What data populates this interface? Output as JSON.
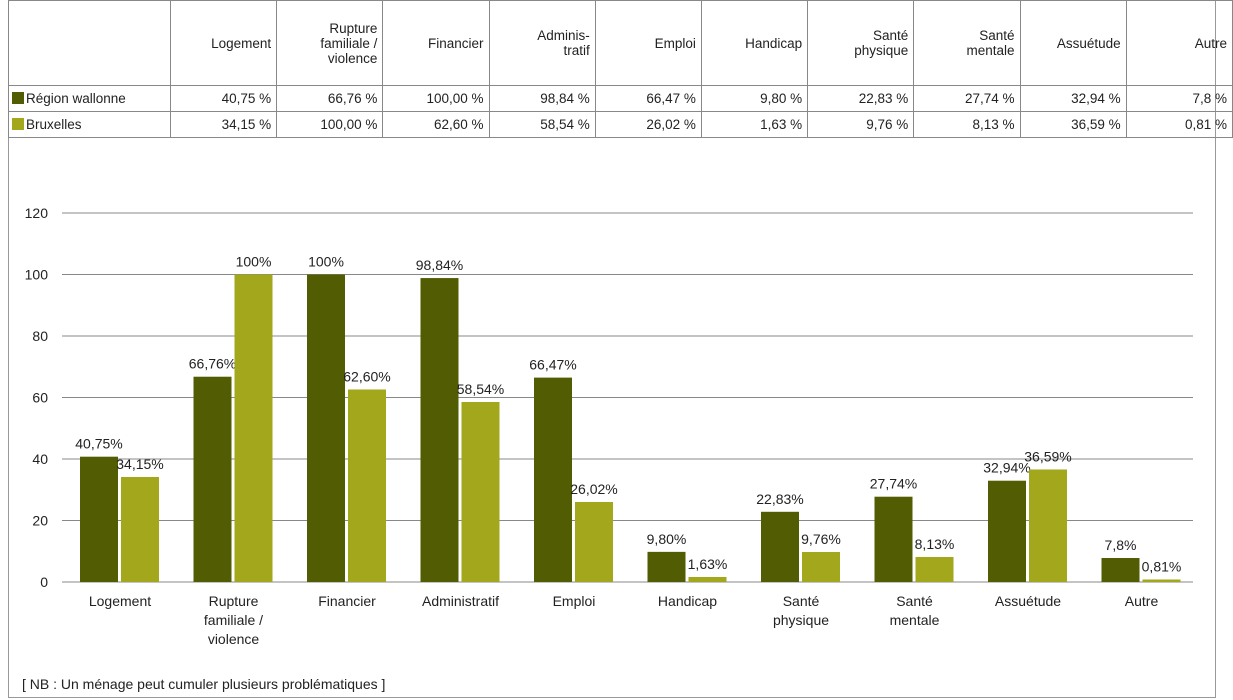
{
  "table": {
    "header": [
      [
        "Logement"
      ],
      [
        "Rupture",
        "familiale /",
        "violence"
      ],
      [
        "Financier"
      ],
      [
        "Adminis-",
        "tratif"
      ],
      [
        "Emploi"
      ],
      [
        "Handicap"
      ],
      [
        "Santé",
        "physique"
      ],
      [
        "Santé",
        "mentale"
      ],
      [
        "Assuétude"
      ],
      [
        "Autre"
      ]
    ],
    "rows": [
      [
        "40,75 %",
        "66,76 %",
        "100,00 %",
        "98,84 %",
        "66,47 %",
        "9,80 %",
        "22,83 %",
        "27,74 %",
        "32,94 %",
        "7,8 %"
      ],
      [
        "34,15 %",
        "100,00 %",
        "62,60 %",
        "58,54 %",
        "26,02 %",
        "1,63 %",
        "9,76 %",
        "8,13 %",
        "36,59 %",
        "0,81 %"
      ]
    ]
  },
  "chart_data": {
    "type": "bar",
    "categories": [
      "Logement",
      "Rupture familiale / violence",
      "Financier",
      "Administratif",
      "Emploi",
      "Handicap",
      "Santé physique",
      "Santé mentale",
      "Assuétude",
      "Autre"
    ],
    "series": [
      {
        "name": "Région wallonne",
        "color": "#525c02",
        "values": [
          40.75,
          66.76,
          100,
          98.84,
          66.47,
          9.8,
          22.83,
          27.74,
          32.94,
          7.8
        ],
        "value_labels": [
          "40,75%",
          "66,76%",
          "100%",
          "98,84%",
          "66,47%",
          "9,80%",
          "22,83%",
          "27,74%",
          "32,94%",
          "7,8%"
        ]
      },
      {
        "name": "Bruxelles",
        "color": "#a3a71b",
        "values": [
          34.15,
          100,
          62.6,
          58.54,
          26.02,
          1.63,
          9.76,
          8.13,
          36.59,
          0.81
        ],
        "value_labels": [
          "34,15%",
          "100%",
          "62,60%",
          "58,54%",
          "26,02%",
          "1,63%",
          "9,76%",
          "8,13%",
          "36,59%",
          "0,81%"
        ]
      }
    ],
    "ylim": [
      0,
      120
    ],
    "yticks": [
      0,
      20,
      40,
      60,
      80,
      100,
      120
    ],
    "grid": true
  },
  "note": "[ NB : Un ménage peut cumuler plusieurs problématiques ]"
}
